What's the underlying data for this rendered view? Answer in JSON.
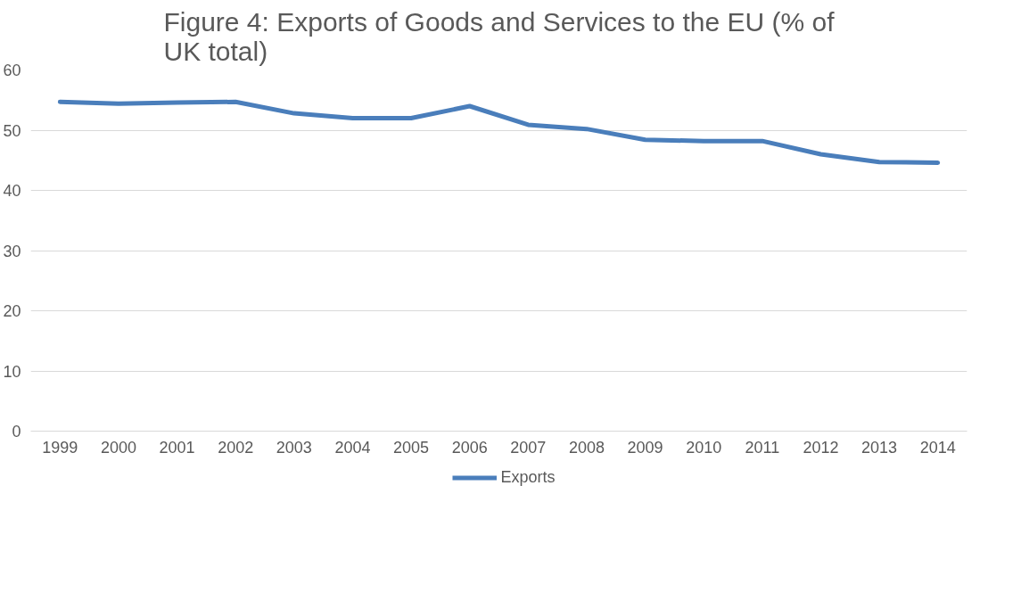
{
  "chart_data": {
    "type": "line",
    "title": "Figure 4: Exports of Goods and Services to the EU (% of UK total)",
    "categories": [
      "1999",
      "2000",
      "2001",
      "2002",
      "2003",
      "2004",
      "2005",
      "2006",
      "2007",
      "2008",
      "2009",
      "2010",
      "2011",
      "2012",
      "2013",
      "2014"
    ],
    "series": [
      {
        "name": "Exports",
        "color": "#4a7ebb",
        "values": [
          54.7,
          54.4,
          54.6,
          54.7,
          52.8,
          52.0,
          52.0,
          54.0,
          50.9,
          50.2,
          48.4,
          48.2,
          48.2,
          46.0,
          44.7,
          44.6
        ]
      }
    ],
    "ylim": [
      0,
      60
    ],
    "yticks": [
      0,
      10,
      20,
      30,
      40,
      50,
      60
    ],
    "grid": "y",
    "legend": "bottom"
  }
}
